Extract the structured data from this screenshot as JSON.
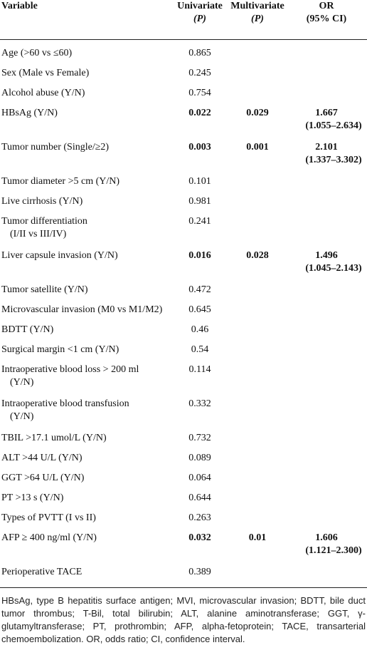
{
  "header": {
    "variable": "Variable",
    "univariate": "Univariate",
    "univariate_p": "(P)",
    "multivariate": "Multivariate",
    "multivariate_p": "(P)",
    "or": "OR",
    "or_ci": "(95% CI)"
  },
  "rows": [
    {
      "variable": "Age (>60 vs ≤60)",
      "univariate": "0.865",
      "multivariate": "",
      "or": "",
      "ci": "",
      "bold": false
    },
    {
      "variable": "Sex (Male vs Female)",
      "univariate": "0.245",
      "multivariate": "",
      "or": "",
      "ci": "",
      "bold": false
    },
    {
      "variable": "Alcohol abuse (Y/N)",
      "univariate": "0.754",
      "multivariate": "",
      "or": "",
      "ci": "",
      "bold": false
    },
    {
      "variable": "HBsAg (Y/N)",
      "univariate": "0.022",
      "multivariate": "0.029",
      "or": "1.667",
      "ci": "(1.055–2.634)",
      "bold": true
    },
    {
      "variable": "Tumor number (Single/≥2)",
      "univariate": "0.003",
      "multivariate": "0.001",
      "or": "2.101",
      "ci": "(1.337–3.302)",
      "bold": true
    },
    {
      "variable": "Tumor diameter >5 cm (Y/N)",
      "univariate": "0.101",
      "multivariate": "",
      "or": "",
      "ci": "",
      "bold": false
    },
    {
      "variable": "Live cirrhosis (Y/N)",
      "univariate": "0.981",
      "multivariate": "",
      "or": "",
      "ci": "",
      "bold": false
    },
    {
      "variable": "Tumor differentiation",
      "variable2": "(I/II vs III/IV)",
      "univariate": "0.241",
      "multivariate": "",
      "or": "",
      "ci": "",
      "bold": false
    },
    {
      "variable": "Liver capsule invasion (Y/N)",
      "univariate": "0.016",
      "multivariate": "0.028",
      "or": "1.496",
      "ci": "(1.045–2.143)",
      "bold": true
    },
    {
      "variable": "Tumor satellite (Y/N)",
      "univariate": "0.472",
      "multivariate": "",
      "or": "",
      "ci": "",
      "bold": false
    },
    {
      "variable": "Microvascular invasion (M0 vs M1/M2)",
      "univariate": "0.645",
      "multivariate": "",
      "or": "",
      "ci": "",
      "bold": false
    },
    {
      "variable": "BDTT (Y/N)",
      "univariate": "0.46",
      "multivariate": "",
      "or": "",
      "ci": "",
      "bold": false
    },
    {
      "variable": "Surgical margin <1 cm (Y/N)",
      "univariate": "0.54",
      "multivariate": "",
      "or": "",
      "ci": "",
      "bold": false
    },
    {
      "variable": "Intraoperative blood loss > 200 ml",
      "variable2": "(Y/N)",
      "univariate": "0.114",
      "multivariate": "",
      "or": "",
      "ci": "",
      "bold": false
    },
    {
      "variable": "Intraoperative blood transfusion",
      "variable2": "(Y/N)",
      "univariate": "0.332",
      "multivariate": "",
      "or": "",
      "ci": "",
      "bold": false
    },
    {
      "variable": "TBIL >17.1 umol/L (Y/N)",
      "univariate": "0.732",
      "multivariate": "",
      "or": "",
      "ci": "",
      "bold": false
    },
    {
      "variable": "ALT >44 U/L (Y/N)",
      "univariate": "0.089",
      "multivariate": "",
      "or": "",
      "ci": "",
      "bold": false
    },
    {
      "variable": "GGT >64 U/L (Y/N)",
      "univariate": "0.064",
      "multivariate": "",
      "or": "",
      "ci": "",
      "bold": false
    },
    {
      "variable": "PT >13 s (Y/N)",
      "univariate": "0.644",
      "multivariate": "",
      "or": "",
      "ci": "",
      "bold": false
    },
    {
      "variable": "Types of PVTT (I vs II)",
      "univariate": "0.263",
      "multivariate": "",
      "or": "",
      "ci": "",
      "bold": false
    },
    {
      "variable": "AFP ≥ 400 ng/ml (Y/N)",
      "univariate": "0.032",
      "multivariate": "0.01",
      "or": "1.606",
      "ci": "(1.121–2.300)",
      "bold": true
    },
    {
      "variable": "Perioperative TACE",
      "univariate": "0.389",
      "multivariate": "",
      "or": "",
      "ci": "",
      "bold": false
    }
  ],
  "footnote": "HBsAg, type B hepatitis surface antigen; MVI, microvascular invasion; BDTT, bile duct tumor thrombus; T-Bil, total bilirubin; ALT, alanine aminotransferase; GGT, γ-glutamyltransferase; PT, prothrombin; AFP, alpha-fetoprotein; TACE, transarterial chemoembolization. OR, odds ratio; CI, confidence interval."
}
